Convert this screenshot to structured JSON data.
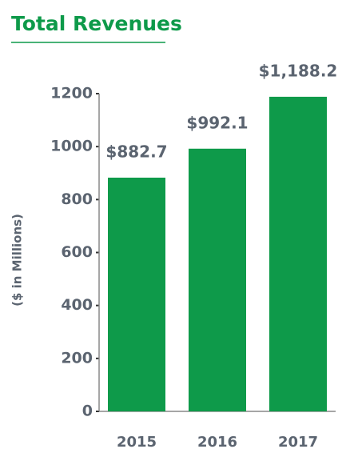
{
  "chart_data": {
    "type": "bar",
    "title": "Total Revenues",
    "y_label": "($ in Millions)",
    "categories": [
      "2015",
      "2016",
      "2017"
    ],
    "values": [
      882.7,
      992.1,
      1188.2
    ],
    "value_labels": [
      "$882.7",
      "$992.1",
      "$1,188.2"
    ],
    "color": "#0e9a4a",
    "ylim": [
      0,
      1200
    ],
    "yticks": [
      0,
      200,
      400,
      600,
      800,
      1000,
      1200
    ],
    "grid": false
  }
}
